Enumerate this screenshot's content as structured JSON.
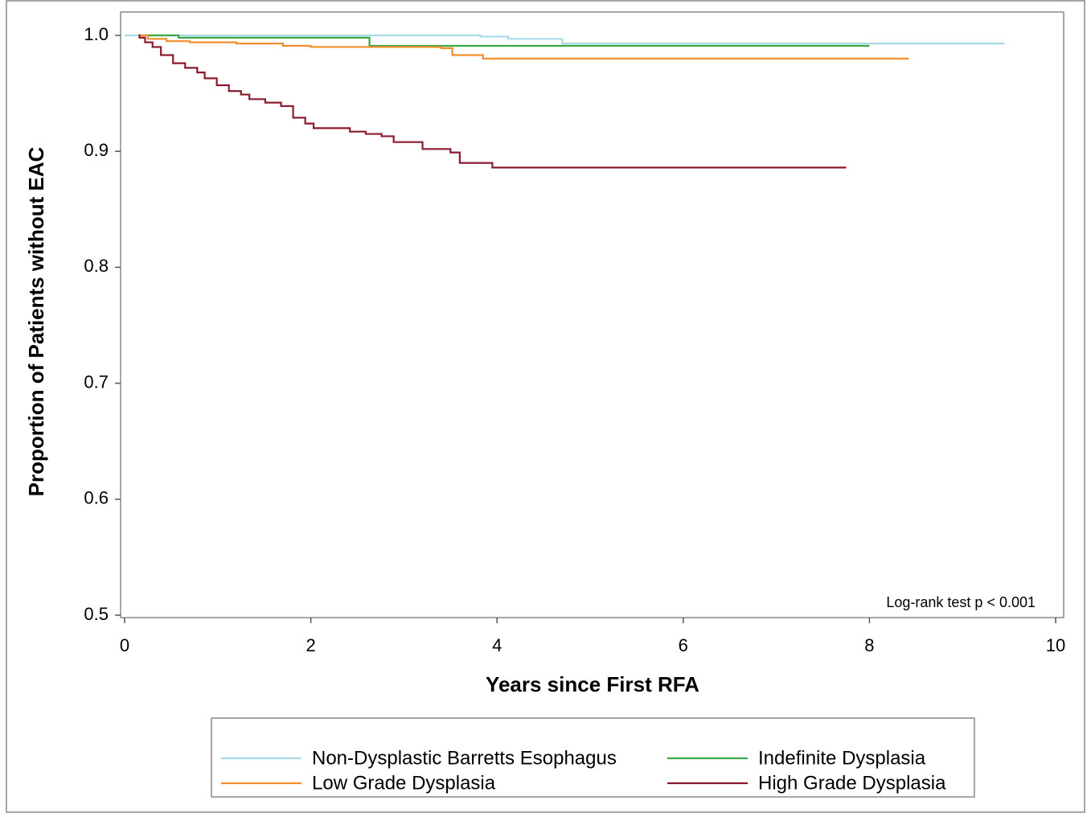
{
  "chart_data": {
    "type": "line",
    "step": true,
    "x_label": "Years since First RFA",
    "y_label": "Proportion of Patients without EAC",
    "annotation": "Log-rank test p < 0.001",
    "xlim": [
      0,
      10
    ],
    "xticks": [
      0,
      2,
      4,
      6,
      8,
      10
    ],
    "ylim": [
      0.5,
      1.0
    ],
    "yticks": [
      0.5,
      0.6,
      0.7,
      0.8,
      0.9,
      {
        "value": 1.0,
        "label": "1.0"
      }
    ],
    "legend": "bottom",
    "series": [
      {
        "name": "Non-Dysplastic Barretts Esophagus",
        "color": "#a6dcea",
        "x": [
          0,
          3.82,
          4.12,
          4.7,
          9.45
        ],
        "values": [
          1.0,
          0.999,
          0.997,
          0.993,
          0.993
        ]
      },
      {
        "name": "Indefinite Dysplasia",
        "color": "#3aa845",
        "x": [
          0.15,
          0.58,
          2.63,
          8.0
        ],
        "values": [
          1.0,
          0.998,
          0.991,
          0.991
        ]
      },
      {
        "name": "Low Grade Dysplasia",
        "color": "#f28e2b",
        "x": [
          0.15,
          0.25,
          0.45,
          0.7,
          1.2,
          1.7,
          2.0,
          3.4,
          3.52,
          3.85,
          8.42
        ],
        "values": [
          1.0,
          0.997,
          0.995,
          0.994,
          0.993,
          0.991,
          0.99,
          0.989,
          0.983,
          0.98,
          0.98
        ]
      },
      {
        "name": "High Grade Dysplasia",
        "color": "#8b1a2e",
        "x": [
          0.15,
          0.16,
          0.22,
          0.3,
          0.39,
          0.52,
          0.65,
          0.78,
          0.86,
          0.99,
          1.12,
          1.25,
          1.34,
          1.51,
          1.68,
          1.81,
          1.94,
          2.03,
          2.42,
          2.59,
          2.76,
          2.89,
          3.2,
          3.5,
          3.6,
          3.95,
          7.75
        ],
        "values": [
          1.0,
          0.998,
          0.994,
          0.99,
          0.983,
          0.976,
          0.972,
          0.968,
          0.963,
          0.957,
          0.952,
          0.949,
          0.945,
          0.942,
          0.939,
          0.929,
          0.924,
          0.92,
          0.917,
          0.915,
          0.913,
          0.908,
          0.902,
          0.899,
          0.89,
          0.886,
          0.886
        ]
      }
    ]
  }
}
